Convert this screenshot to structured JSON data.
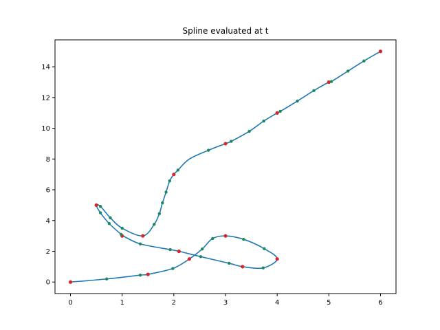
{
  "chart_data": {
    "type": "line",
    "title": "Spline evaluated at t",
    "xlabel": "",
    "ylabel": "",
    "xlim": [
      -0.3,
      6.3
    ],
    "ylim": [
      -0.75,
      15.75
    ],
    "xticks": [
      0,
      1,
      2,
      3,
      4,
      5,
      6
    ],
    "yticks": [
      0,
      2,
      4,
      6,
      8,
      10,
      12,
      14
    ],
    "grid": false,
    "legend": "none",
    "colors": {
      "curve": "#1f77b4",
      "knots": "#d62728",
      "samples": "#1b8a5a"
    },
    "series": [
      {
        "role": "curve",
        "x": [
          0.0,
          0.7,
          1.35,
          1.5,
          1.98,
          2.3,
          2.55,
          2.75,
          3.0,
          3.35,
          3.75,
          4.0,
          3.73,
          3.33,
          3.07,
          2.52,
          2.1,
          1.93,
          1.35,
          1.02,
          0.98,
          0.75,
          0.58,
          0.5,
          0.58,
          0.77,
          1.0,
          1.4,
          1.62,
          1.72,
          1.78,
          1.85,
          1.92,
          2.0,
          2.08,
          2.3,
          2.67,
          3.0,
          3.11,
          3.46,
          3.74,
          4.0,
          4.06,
          4.39,
          4.71,
          5.0,
          5.05,
          5.37,
          5.68,
          6.0
        ],
        "y": [
          0.0,
          0.2,
          0.45,
          0.5,
          0.88,
          1.5,
          2.15,
          2.83,
          3.0,
          2.78,
          2.17,
          1.5,
          0.92,
          1.0,
          1.22,
          1.65,
          2.0,
          2.11,
          2.48,
          3.0,
          3.1,
          3.8,
          4.5,
          5.0,
          4.92,
          4.18,
          3.5,
          3.0,
          3.75,
          4.45,
          5.15,
          5.85,
          6.58,
          7.0,
          7.28,
          8.0,
          8.57,
          9.0,
          9.15,
          9.8,
          10.47,
          11.0,
          11.1,
          11.77,
          12.45,
          13.0,
          13.04,
          13.72,
          14.38,
          15.0
        ]
      },
      {
        "role": "knots",
        "x": [
          0.0,
          1.5,
          2.3,
          3.0,
          4.0,
          3.33,
          2.1,
          1.0,
          0.5,
          1.4,
          2.0,
          3.0,
          4.0,
          5.0,
          6.0
        ],
        "y": [
          0.0,
          0.5,
          1.5,
          3.0,
          1.5,
          1.0,
          2.0,
          3.0,
          5.0,
          3.0,
          7.0,
          9.0,
          11.0,
          13.0,
          15.0
        ]
      },
      {
        "role": "samples",
        "x": [
          0.7,
          1.35,
          1.98,
          2.55,
          2.75,
          3.35,
          3.75,
          3.73,
          3.07,
          2.52,
          1.93,
          1.35,
          0.98,
          0.75,
          0.58,
          0.58,
          0.77,
          1.0,
          1.62,
          1.72,
          1.78,
          1.85,
          1.92,
          2.08,
          2.67,
          3.11,
          3.46,
          3.74,
          4.06,
          4.39,
          4.71,
          5.05,
          5.37,
          5.68
        ],
        "y": [
          0.2,
          0.45,
          0.88,
          2.15,
          2.83,
          2.78,
          2.17,
          0.92,
          1.22,
          1.65,
          2.11,
          2.48,
          3.1,
          3.8,
          4.5,
          4.92,
          4.18,
          3.5,
          3.75,
          4.45,
          5.15,
          5.85,
          6.58,
          7.28,
          8.57,
          9.15,
          9.8,
          10.47,
          11.1,
          11.77,
          12.45,
          13.04,
          13.72,
          14.38
        ]
      }
    ]
  }
}
